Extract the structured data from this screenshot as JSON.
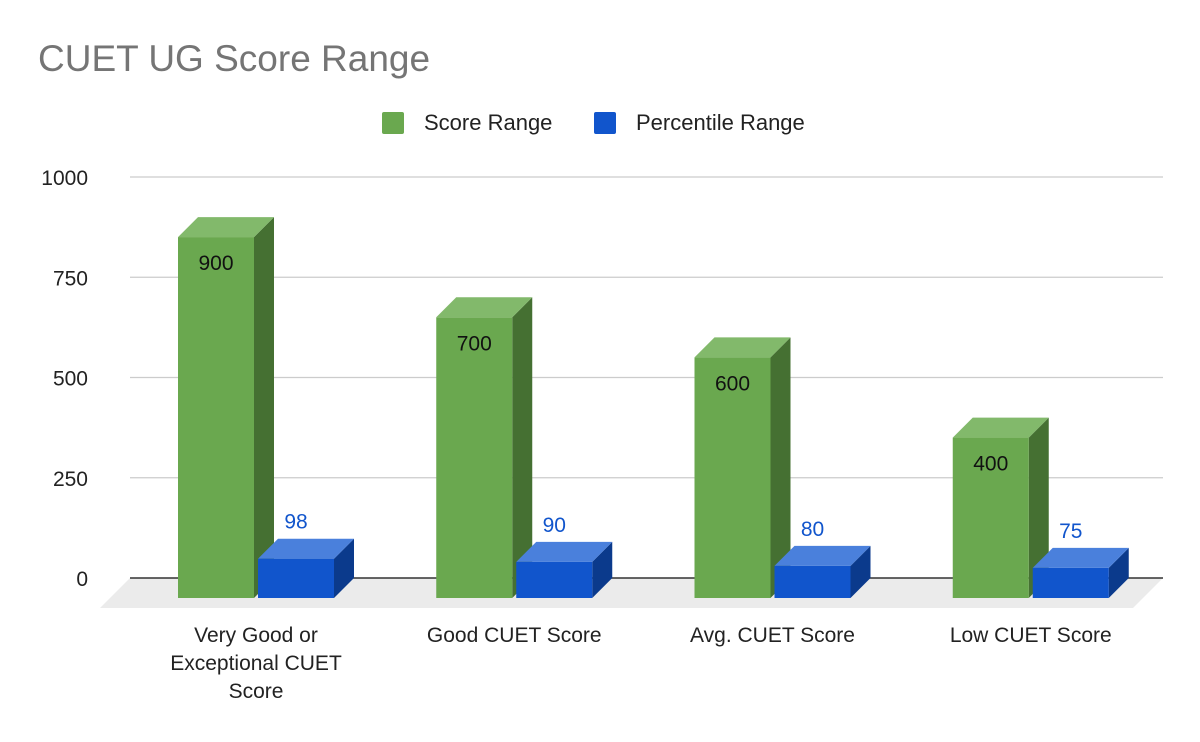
{
  "chart_data": {
    "type": "bar",
    "title": "CUET UG Score Range",
    "xlabel": "",
    "ylabel": "",
    "ylim": [
      0,
      1000
    ],
    "yticks": [
      "1000",
      "750",
      "500",
      "250",
      "0"
    ],
    "categories": [
      "Very Good or Exceptional CUET Score",
      "Good CUET Score",
      "Avg. CUET Score",
      "Low CUET Score"
    ],
    "category_lines": [
      [
        "Very Good or",
        "Exceptional CUET",
        "Score"
      ],
      [
        "Good CUET Score"
      ],
      [
        "Avg. CUET Score"
      ],
      [
        "Low CUET Score"
      ]
    ],
    "series": [
      {
        "name": "Score Range",
        "values": [
          900,
          700,
          600,
          400
        ],
        "labels": [
          "900",
          "700",
          "600",
          "400"
        ]
      },
      {
        "name": "Percentile Range",
        "values": [
          98,
          90,
          80,
          75
        ],
        "labels": [
          "98",
          "90",
          "80",
          "75"
        ]
      }
    ],
    "legend_position": "top",
    "grid": true,
    "style": "3d"
  },
  "colors": {
    "score_front": "#6aa84f",
    "score_top": "#82b96b",
    "score_side": "#457032",
    "pct_front": "#1155cc",
    "pct_top": "#4a80dc",
    "pct_side": "#0b3a8c",
    "grid": "#cccccc",
    "floor": "#ebebeb"
  }
}
